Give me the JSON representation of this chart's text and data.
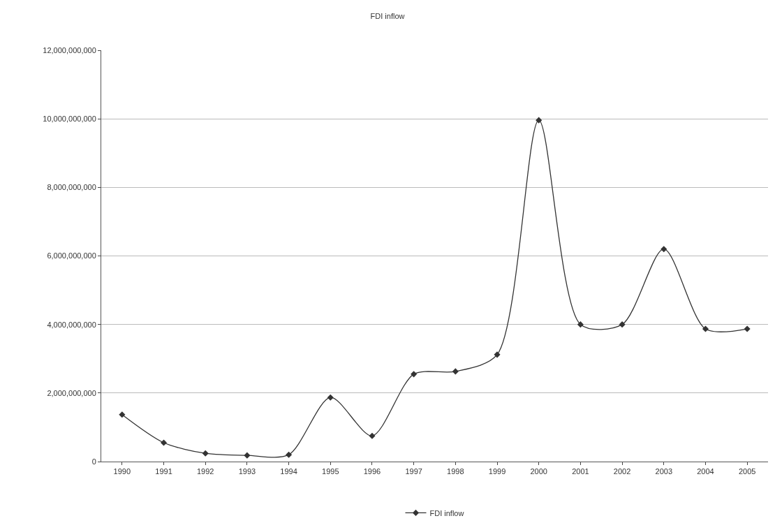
{
  "chart_data": {
    "type": "line",
    "title": "FDI inflow",
    "categories": [
      "1990",
      "1991",
      "1992",
      "1993",
      "1994",
      "1995",
      "1996",
      "1997",
      "1998",
      "1999",
      "2000",
      "2001",
      "2002",
      "2003",
      "2004",
      "2005"
    ],
    "series": [
      {
        "name": "FDI inflow",
        "color": "#333333",
        "values": [
          1370000000,
          550000000,
          240000000,
          180000000,
          200000000,
          1870000000,
          750000000,
          2550000000,
          2630000000,
          3120000000,
          9960000000,
          4000000000,
          4000000000,
          6200000000,
          3870000000,
          3870000000
        ]
      }
    ],
    "ylim": [
      0,
      12000000000
    ],
    "yticks": [
      {
        "value": 0,
        "label": "0"
      },
      {
        "value": 2000000000,
        "label": "2,000,000,000"
      },
      {
        "value": 4000000000,
        "label": "4,000,000,000"
      },
      {
        "value": 6000000000,
        "label": "6,000,000,000"
      },
      {
        "value": 8000000000,
        "label": "8,000,000,000"
      },
      {
        "value": 10000000000,
        "label": "10,000,000,000"
      },
      {
        "value": 12000000000,
        "label": "12,000,000,000"
      }
    ],
    "grid": "y",
    "legend": "bottom",
    "marker": "diamond",
    "line_style": "solid"
  }
}
